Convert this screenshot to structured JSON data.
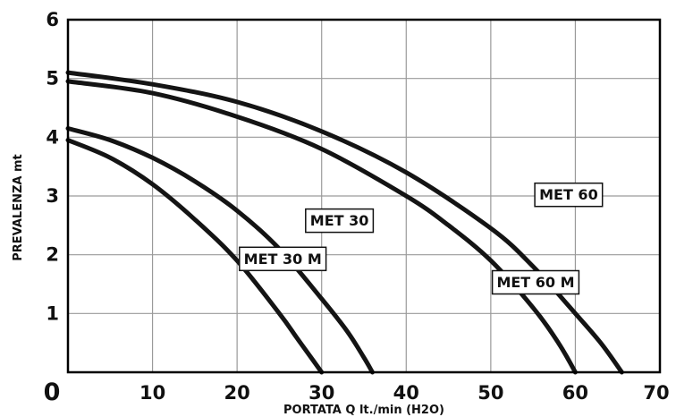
{
  "chart_data": {
    "type": "line",
    "title": "",
    "xlabel": "PORTATA Q  lt./min (H2O)",
    "ylabel": "PREVALENZA  mt",
    "xlim": [
      0,
      70
    ],
    "ylim": [
      0,
      6
    ],
    "x_ticks": [
      "10",
      "20",
      "30",
      "40",
      "50",
      "60",
      "70"
    ],
    "x_origin_label": "0",
    "y_ticks": [
      "1",
      "2",
      "3",
      "4",
      "5",
      "6"
    ],
    "grid": true,
    "series": [
      {
        "name": "MET 30 M",
        "x": [
          0,
          5,
          10,
          15,
          20,
          25,
          27,
          29,
          30
        ],
        "y": [
          3.95,
          3.65,
          3.2,
          2.6,
          1.9,
          1.0,
          0.6,
          0.2,
          0
        ]
      },
      {
        "name": "MET 30",
        "x": [
          0,
          5,
          10,
          15,
          20,
          25,
          30,
          33,
          35,
          36
        ],
        "y": [
          4.15,
          3.95,
          3.65,
          3.25,
          2.75,
          2.1,
          1.25,
          0.7,
          0.25,
          0
        ]
      },
      {
        "name": "MET 60 M",
        "x": [
          0,
          10,
          20,
          30,
          40,
          45,
          50,
          55,
          58,
          60
        ],
        "y": [
          4.95,
          4.75,
          4.35,
          3.8,
          3.0,
          2.5,
          1.9,
          1.1,
          0.5,
          0
        ]
      },
      {
        "name": "MET 60",
        "x": [
          0,
          10,
          20,
          30,
          40,
          50,
          55,
          60,
          63,
          65.5
        ],
        "y": [
          5.1,
          4.9,
          4.6,
          4.1,
          3.4,
          2.45,
          1.8,
          1.0,
          0.5,
          0
        ]
      }
    ],
    "labels": [
      {
        "text": "MET 30 M",
        "x": 25.4,
        "y": 1.93
      },
      {
        "text": "MET 30",
        "x": 32.1,
        "y": 2.58
      },
      {
        "text": "MET 60 M",
        "x": 55.3,
        "y": 1.53
      },
      {
        "text": "MET 60",
        "x": 59.2,
        "y": 3.02
      }
    ]
  }
}
